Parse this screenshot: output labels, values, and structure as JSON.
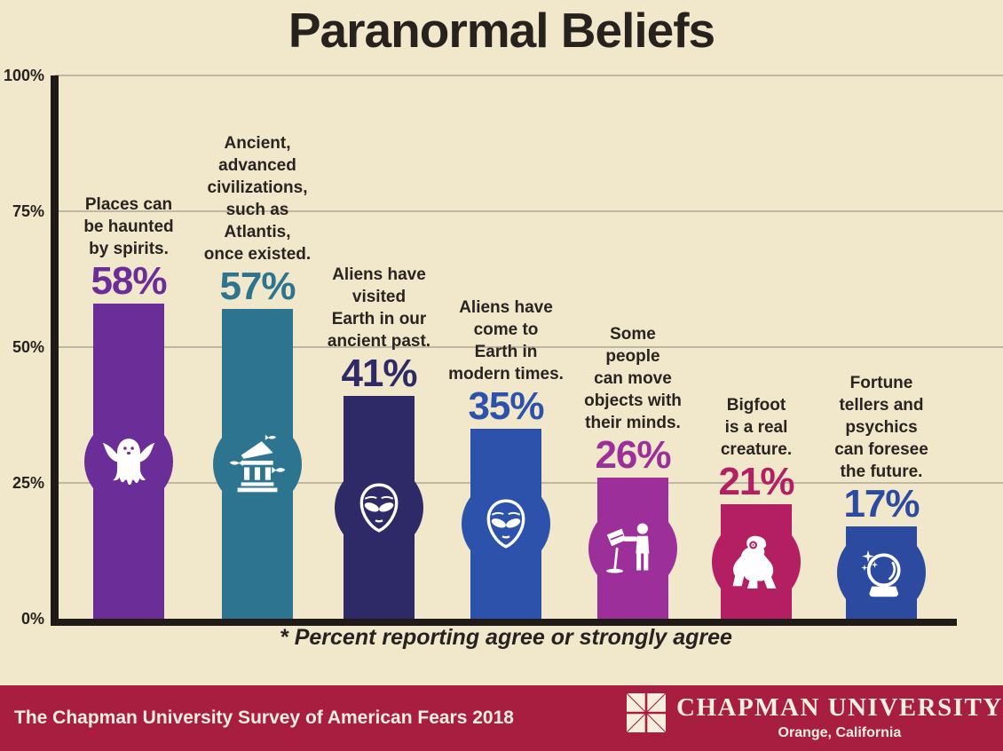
{
  "title": "Paranormal Beliefs",
  "chart_data": {
    "type": "bar",
    "title": "Paranormal Beliefs",
    "footnote": "* Percent reporting agree or strongly agree",
    "xlabel": "",
    "ylabel": "",
    "ylim": [
      0,
      100
    ],
    "grid": true,
    "yticks": [
      {
        "label": "100%",
        "value": 100
      },
      {
        "label": "75%",
        "value": 75
      },
      {
        "label": "50%",
        "value": 50
      },
      {
        "label": "25%",
        "value": 25
      },
      {
        "label": "0%",
        "value": 0
      }
    ],
    "categories": [
      "Places can be haunted by spirits.",
      "Ancient, advanced civilizations, such as Atlantis, once existed.",
      "Aliens have visited Earth in our ancient past.",
      "Aliens have come to Earth in modern times.",
      "Some people can move objects with their minds.",
      "Bigfoot is a real creature.",
      "Fortune tellers and psychics can foresee the future."
    ],
    "label_lines": [
      [
        "Places can",
        "be haunted",
        "by spirits."
      ],
      [
        "Ancient,",
        "advanced",
        "civilizations,",
        "such as",
        "Atlantis,",
        "once existed."
      ],
      [
        "Aliens have",
        "visited",
        "Earth in our",
        "ancient past."
      ],
      [
        "Aliens have",
        "come to",
        "Earth in",
        "modern times."
      ],
      [
        "Some",
        "people",
        "can move",
        "objects with",
        "their minds."
      ],
      [
        "Bigfoot",
        "is a real",
        "creature."
      ],
      [
        "Fortune",
        "tellers and",
        "psychics",
        "can foresee",
        "the future."
      ]
    ],
    "values": [
      58,
      57,
      41,
      35,
      26,
      21,
      17
    ],
    "bar_colors": [
      "#6B2E98",
      "#2C7490",
      "#2E2A67",
      "#2C52AC",
      "#9D2F9A",
      "#B41E62",
      "#2C4BA0"
    ],
    "icons": [
      "ghost-icon",
      "atlantis-temple-icon",
      "alien-head-icon",
      "alien-head-icon",
      "telekinesis-icon",
      "bigfoot-icon",
      "crystal-ball-icon"
    ]
  },
  "footer": {
    "survey_title": "The Chapman University Survey of American Fears 2018",
    "university_name": "CHAPMAN UNIVERSITY",
    "university_location": "Orange, California"
  },
  "colors": {
    "background": "#F1E7CB",
    "footer_bg": "#A81E41",
    "text_dark": "#28221F",
    "axis": "#201B18",
    "gridline": "#BFB7A3",
    "icon_white": "#FFFFFF"
  }
}
